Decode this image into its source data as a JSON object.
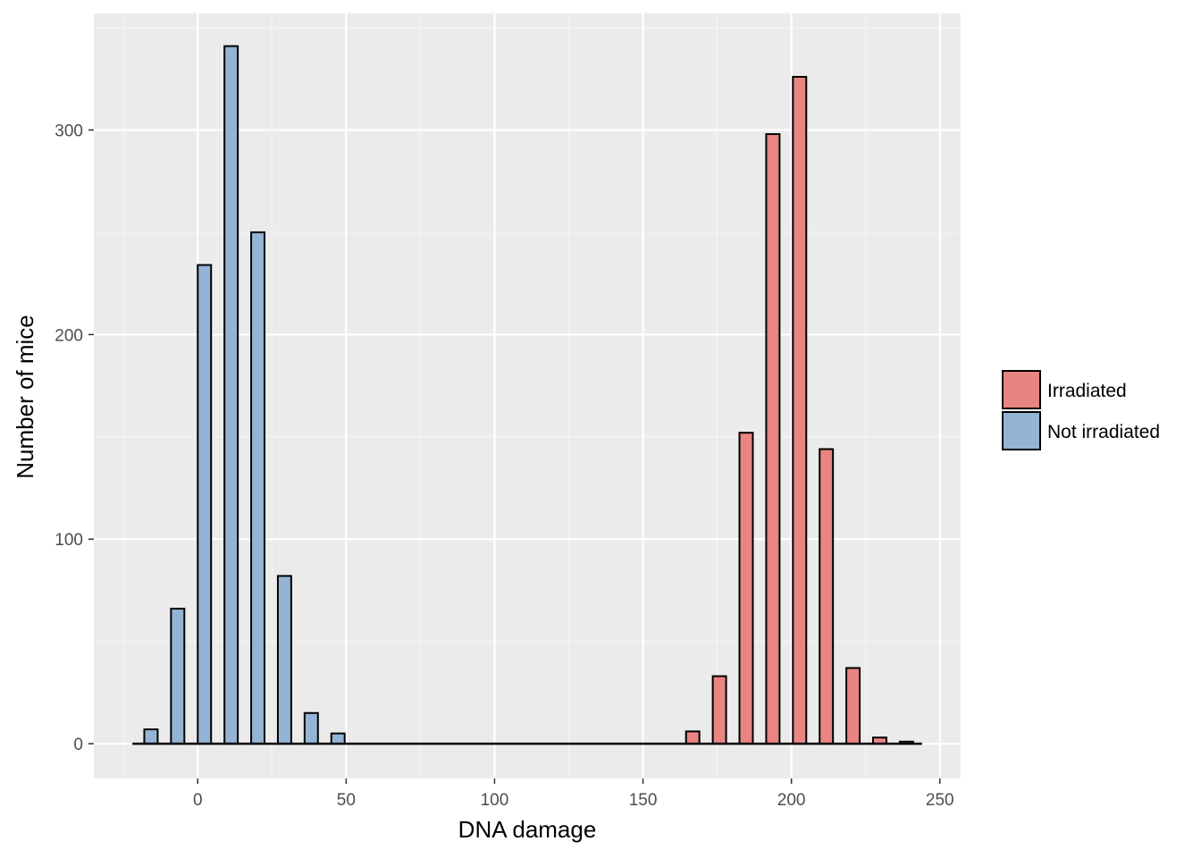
{
  "chart_data": {
    "type": "bar",
    "title": "",
    "xlabel": "DNA damage",
    "ylabel": "Number of mice",
    "xlim": [
      -35,
      257
    ],
    "ylim": [
      -17,
      357
    ],
    "x_ticks": [
      0,
      50,
      100,
      150,
      200,
      250
    ],
    "y_ticks": [
      0,
      100,
      200,
      300
    ],
    "grid": true,
    "legend_position": "right",
    "bin_width": 9,
    "bar_width": 4.5,
    "series": [
      {
        "name": "Irradiated",
        "color": "#e88482",
        "x": [
          166.75,
          175.75,
          184.75,
          193.75,
          202.75,
          211.75,
          220.75,
          229.75,
          238.75
        ],
        "values": [
          6,
          33,
          152,
          298,
          326,
          144,
          37,
          3,
          1
        ]
      },
      {
        "name": "Not irradiated",
        "color": "#93b4d4",
        "x": [
          -15.75,
          -6.75,
          2.25,
          11.25,
          20.25,
          29.25,
          38.25,
          47.25
        ],
        "values": [
          7,
          66,
          234,
          341,
          250,
          82,
          15,
          5
        ]
      }
    ],
    "baseline_range": [
      -22,
      244
    ]
  }
}
